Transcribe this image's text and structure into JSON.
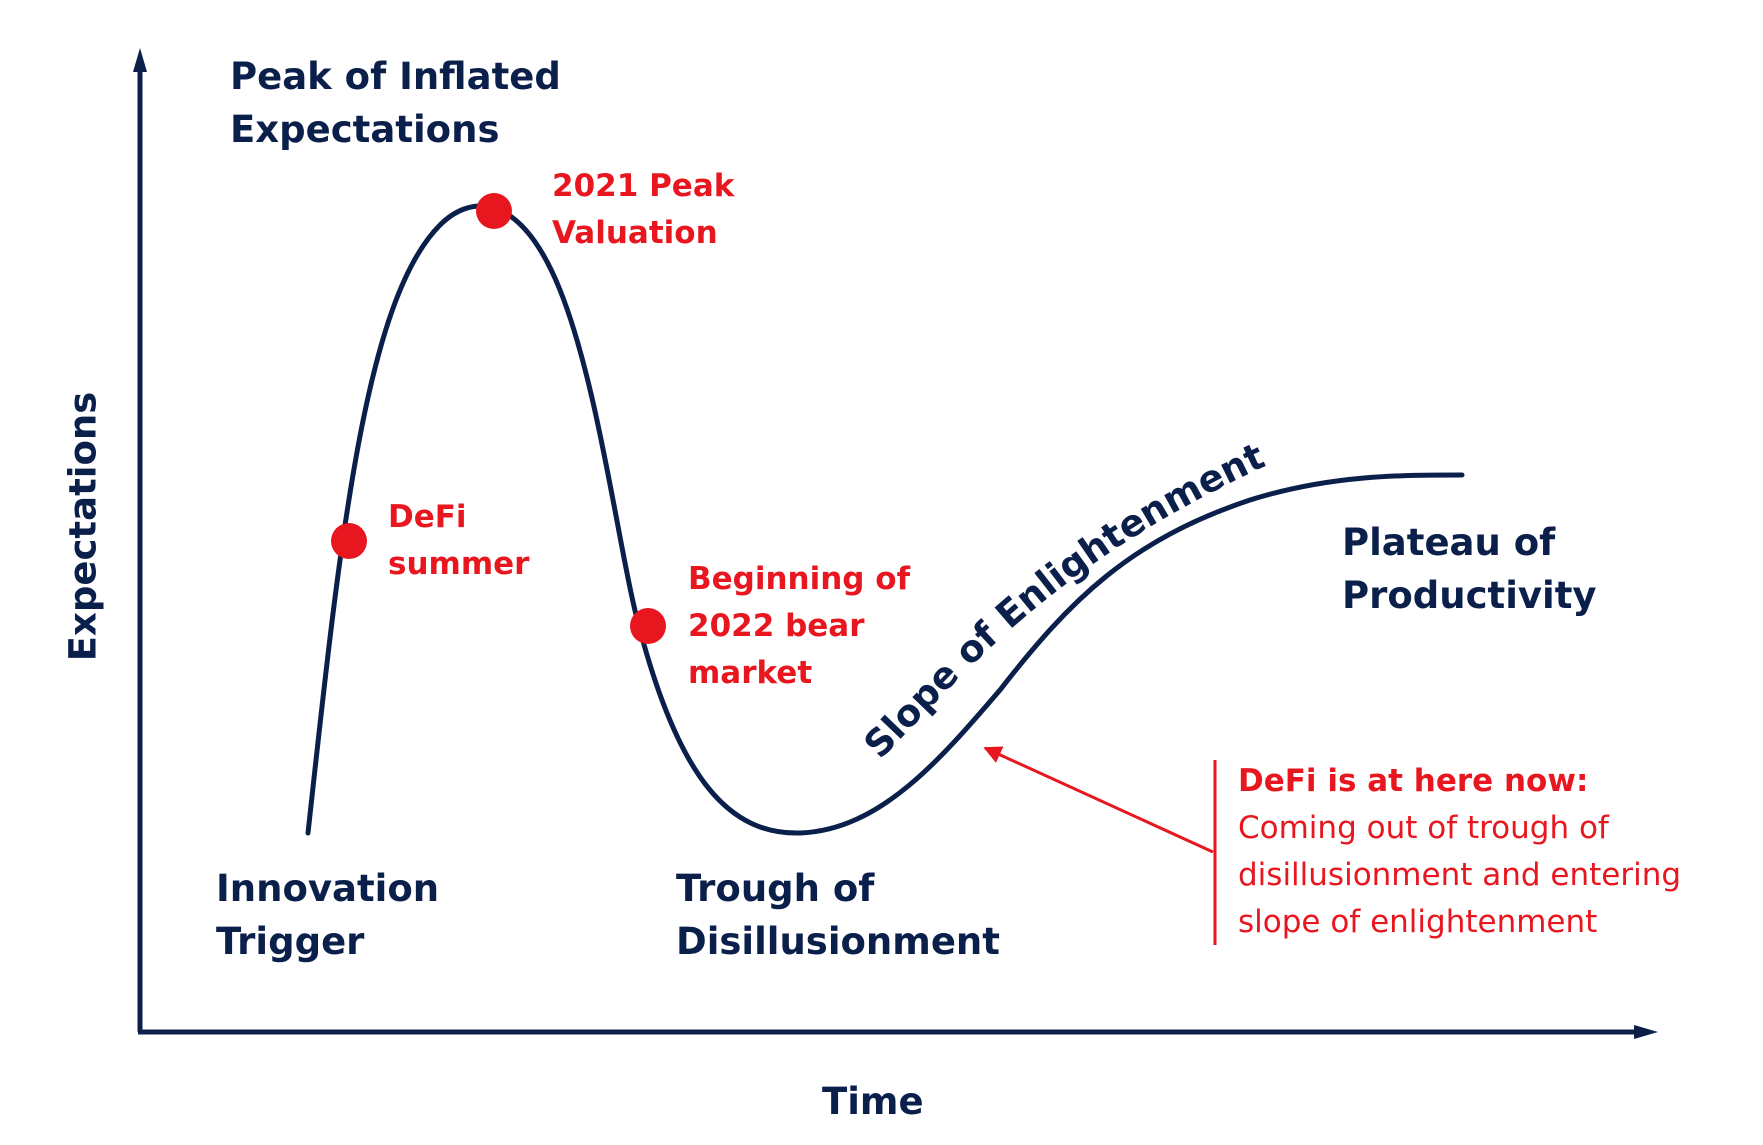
{
  "axes": {
    "y_label": "Expectations",
    "x_label": "Time"
  },
  "phases": {
    "peak": [
      "Peak of Inflated",
      "Expectations"
    ],
    "innovation": [
      "Innovation",
      "Trigger"
    ],
    "trough": [
      "Trough of",
      "Disillusionment"
    ],
    "slope": "Slope of Enlightenment",
    "plateau": [
      "Plateau of",
      "Productivity"
    ]
  },
  "events": {
    "peak_valuation": [
      "2021 Peak",
      "Valuation"
    ],
    "defi_summer": [
      "DeFi",
      "summer"
    ],
    "bear_market": [
      "Beginning of",
      "2022 bear",
      "market"
    ]
  },
  "note": {
    "title": "DeFi is at here now:",
    "lines": [
      "Coming out of trough of",
      "disillusionment and entering",
      "slope of enlightenment"
    ]
  },
  "colors": {
    "curve": "#0b1f4b",
    "axis": "#0b1f4b",
    "marker": "#e8171f",
    "annotation": "#e8171f"
  }
}
